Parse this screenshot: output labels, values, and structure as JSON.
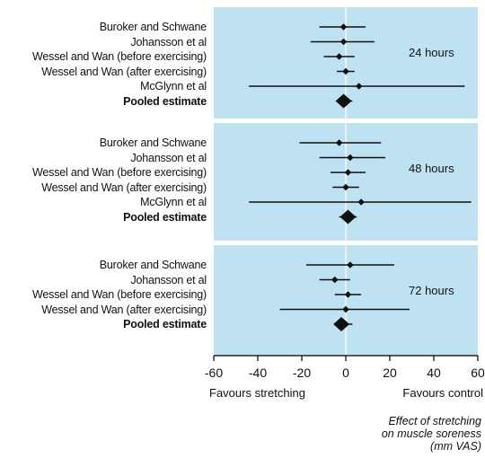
{
  "chart_data": {
    "type": "forest",
    "xlim": [
      -60,
      60
    ],
    "xticks": [
      -60,
      -40,
      -20,
      0,
      20,
      40,
      60
    ],
    "favours_left": "Favours stretching",
    "favours_right": "Favours control",
    "xlabel_lines": [
      "Effect of stretching",
      "on muscle soreness",
      "(mm VAS)"
    ],
    "panels": [
      {
        "label": "24 hours",
        "rows": [
          {
            "study": "Buroker and Schwane",
            "estimate": -1,
            "lower": -12,
            "upper": 9
          },
          {
            "study": "Johansson et al",
            "estimate": -1,
            "lower": -16,
            "upper": 13
          },
          {
            "study": "Wessel and Wan (before exercising)",
            "estimate": -3,
            "lower": -10,
            "upper": 4
          },
          {
            "study": "Wessel and Wan (after exercising)",
            "estimate": 0,
            "lower": -4,
            "upper": 4
          },
          {
            "study": "McGlynn et al",
            "estimate": 6,
            "lower": -44,
            "upper": 54
          },
          {
            "study": "Pooled estimate",
            "estimate": -1,
            "lower": -4,
            "upper": 3,
            "pooled": true
          }
        ]
      },
      {
        "label": "48 hours",
        "rows": [
          {
            "study": "Buroker and Schwane",
            "estimate": -3,
            "lower": -21,
            "upper": 16
          },
          {
            "study": "Johansson et al",
            "estimate": 2,
            "lower": -12,
            "upper": 18
          },
          {
            "study": "Wessel and Wan (before exercising)",
            "estimate": 1,
            "lower": -7,
            "upper": 9
          },
          {
            "study": "Wessel and Wan (after exercising)",
            "estimate": 0,
            "lower": -6,
            "upper": 6
          },
          {
            "study": "McGlynn et al",
            "estimate": 7,
            "lower": -44,
            "upper": 57
          },
          {
            "study": "Pooled estimate",
            "estimate": 1,
            "lower": -3,
            "upper": 5,
            "pooled": true
          }
        ]
      },
      {
        "label": "72 hours",
        "rows": [
          {
            "study": "Buroker and Schwane",
            "estimate": 2,
            "lower": -18,
            "upper": 22
          },
          {
            "study": "Johansson et al",
            "estimate": -5,
            "lower": -12,
            "upper": 2
          },
          {
            "study": "Wessel and Wan (before exercising)",
            "estimate": 1,
            "lower": -5,
            "upper": 7
          },
          {
            "study": "Wessel and Wan (after exercising)",
            "estimate": 0,
            "lower": -30,
            "upper": 29
          },
          {
            "study": "Pooled estimate",
            "estimate": -2,
            "lower": -5,
            "upper": 3,
            "pooled": true
          }
        ]
      }
    ]
  }
}
